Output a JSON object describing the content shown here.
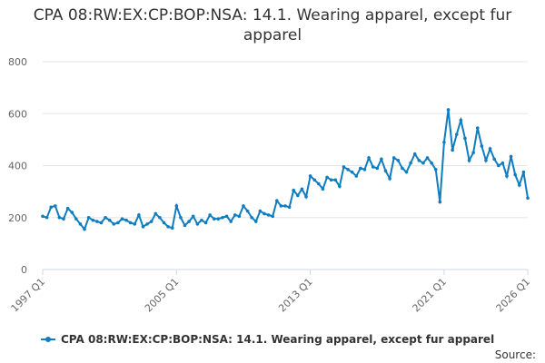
{
  "chart_data": {
    "type": "line",
    "title": "CPA 08:RW:EX:CP:BOP:NSA: 14.1. Wearing apparel, except fur apparel",
    "source": "Source:",
    "categories": [
      "1997 Q1",
      null,
      null,
      null,
      null,
      null,
      null,
      null,
      null,
      null,
      null,
      null,
      null,
      null,
      null,
      null,
      null,
      null,
      null,
      null,
      null,
      null,
      null,
      null,
      null,
      null,
      null,
      null,
      null,
      null,
      null,
      null,
      "2005 Q1",
      null,
      null,
      null,
      null,
      null,
      null,
      null,
      null,
      null,
      null,
      null,
      null,
      null,
      null,
      null,
      null,
      null,
      null,
      null,
      null,
      null,
      null,
      null,
      null,
      null,
      null,
      null,
      null,
      null,
      null,
      null,
      "2013 Q1",
      null,
      null,
      null,
      null,
      null,
      null,
      null,
      null,
      null,
      null,
      null,
      null,
      null,
      null,
      null,
      null,
      null,
      null,
      null,
      null,
      null,
      null,
      null,
      null,
      null,
      null,
      null,
      null,
      null,
      null,
      null,
      "2021 Q1",
      null,
      null,
      null,
      null,
      null,
      null,
      null,
      null,
      null,
      null,
      null,
      null,
      null,
      null,
      null,
      null,
      null,
      null,
      null,
      "2026 Q1"
    ],
    "series": [
      {
        "name": "CPA 08:RW:EX:CP:BOP:NSA: 14.1. Wearing apparel, except fur apparel",
        "color": "#0f7dc0",
        "values": [
          205,
          200,
          240,
          245,
          200,
          195,
          235,
          220,
          195,
          175,
          155,
          200,
          190,
          185,
          180,
          200,
          190,
          175,
          180,
          195,
          190,
          180,
          175,
          210,
          165,
          175,
          185,
          215,
          200,
          180,
          165,
          160,
          245,
          200,
          170,
          185,
          205,
          175,
          190,
          180,
          210,
          195,
          195,
          200,
          205,
          185,
          210,
          205,
          245,
          225,
          200,
          185,
          225,
          215,
          210,
          205,
          265,
          245,
          245,
          240,
          305,
          285,
          310,
          280,
          360,
          345,
          330,
          310,
          355,
          345,
          345,
          320,
          395,
          385,
          375,
          360,
          390,
          385,
          430,
          395,
          390,
          425,
          380,
          350,
          430,
          420,
          390,
          375,
          410,
          445,
          420,
          410,
          430,
          410,
          385,
          260,
          490,
          615,
          460,
          520,
          575,
          505,
          420,
          450,
          545,
          475,
          420,
          465,
          425,
          400,
          410,
          360,
          435,
          365,
          325,
          375,
          275
        ]
      }
    ],
    "ylim": [
      0,
      800
    ],
    "yticks": [
      0,
      200,
      400,
      600,
      800
    ],
    "grid": true
  }
}
